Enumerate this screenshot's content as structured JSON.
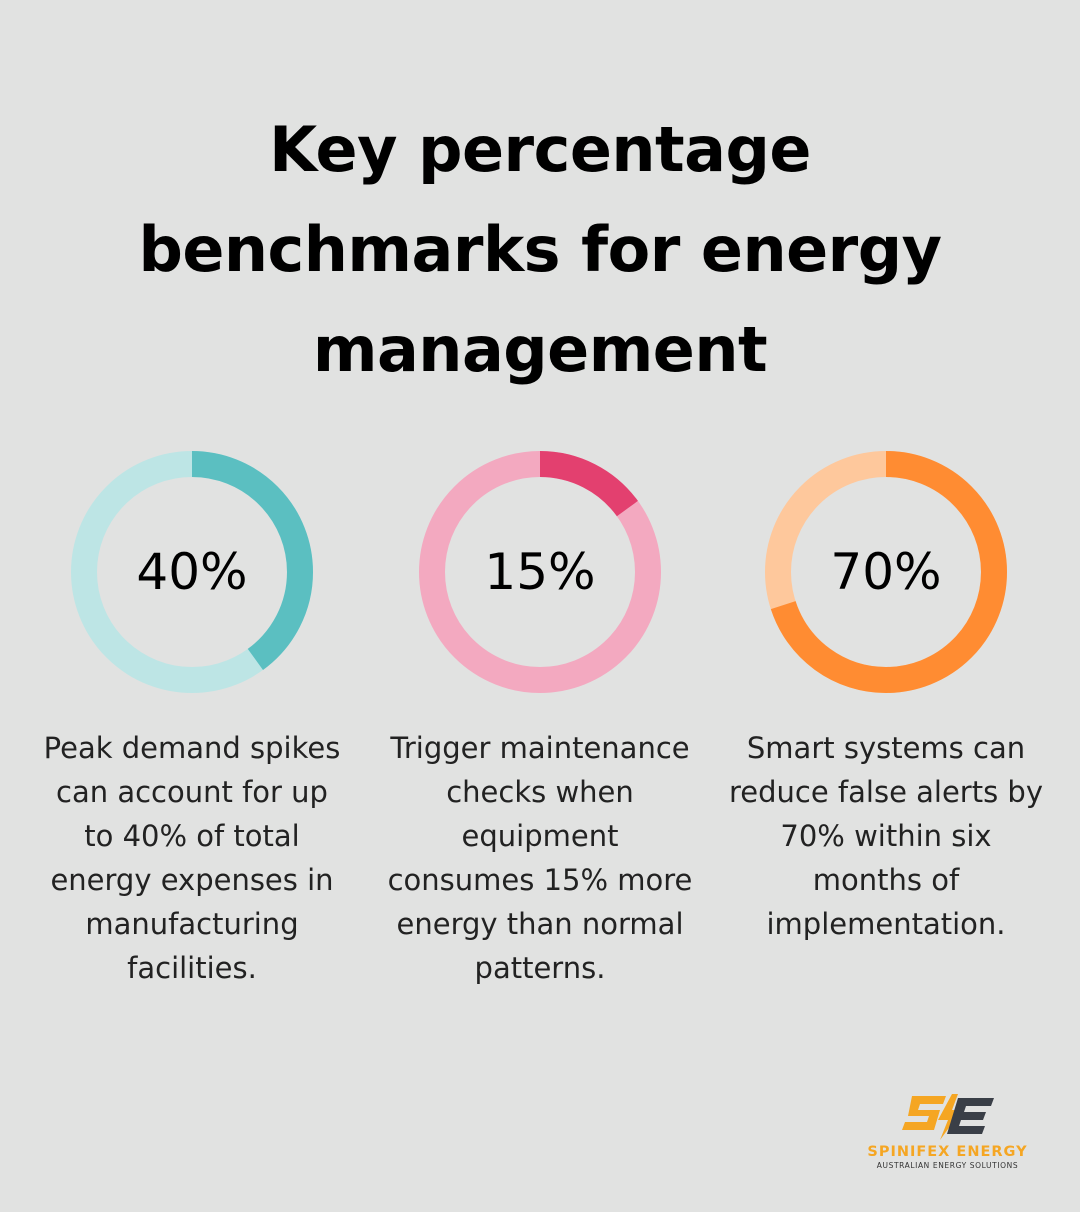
{
  "chart_data": {
    "type": "pie",
    "title_lines": [
      "Key percentage",
      "benchmarks for energy",
      "management"
    ],
    "items": [
      {
        "value": 40,
        "label": "40%",
        "description": "Peak demand spikes can account for up to 40% of total energy expenses in manufacturing facilities.",
        "lines": [
          "Peak demand spikes",
          "can account for up",
          "to 40% of total",
          "energy expenses in",
          "manufacturing",
          "facilities."
        ],
        "color": "#5bbfc1",
        "track_color": "#bde5e5"
      },
      {
        "value": 15,
        "label": "15%",
        "description": "Trigger maintenance checks when equipment consumes 15% more energy than normal patterns.",
        "lines": [
          "Trigger maintenance",
          "checks when",
          "equipment",
          "consumes 15% more",
          "energy than normal",
          "patterns."
        ],
        "color": "#e3406f",
        "track_color": "#f3a9c0"
      },
      {
        "value": 70,
        "label": "70%",
        "description": "Smart systems can reduce false alerts by 70% within six months of implementation.",
        "lines": [
          "Smart systems can",
          "reduce false alerts by",
          "70% within six",
          "months of",
          "implementation."
        ],
        "color": "#ff8c32",
        "track_color": "#fec89c"
      }
    ]
  },
  "logo": {
    "name": "SPINIFEX ENERGY",
    "tagline": "AUSTRALIAN ENERGY SOLUTIONS",
    "colors": {
      "primary": "#f5a623",
      "secondary": "#3a3f47"
    }
  }
}
